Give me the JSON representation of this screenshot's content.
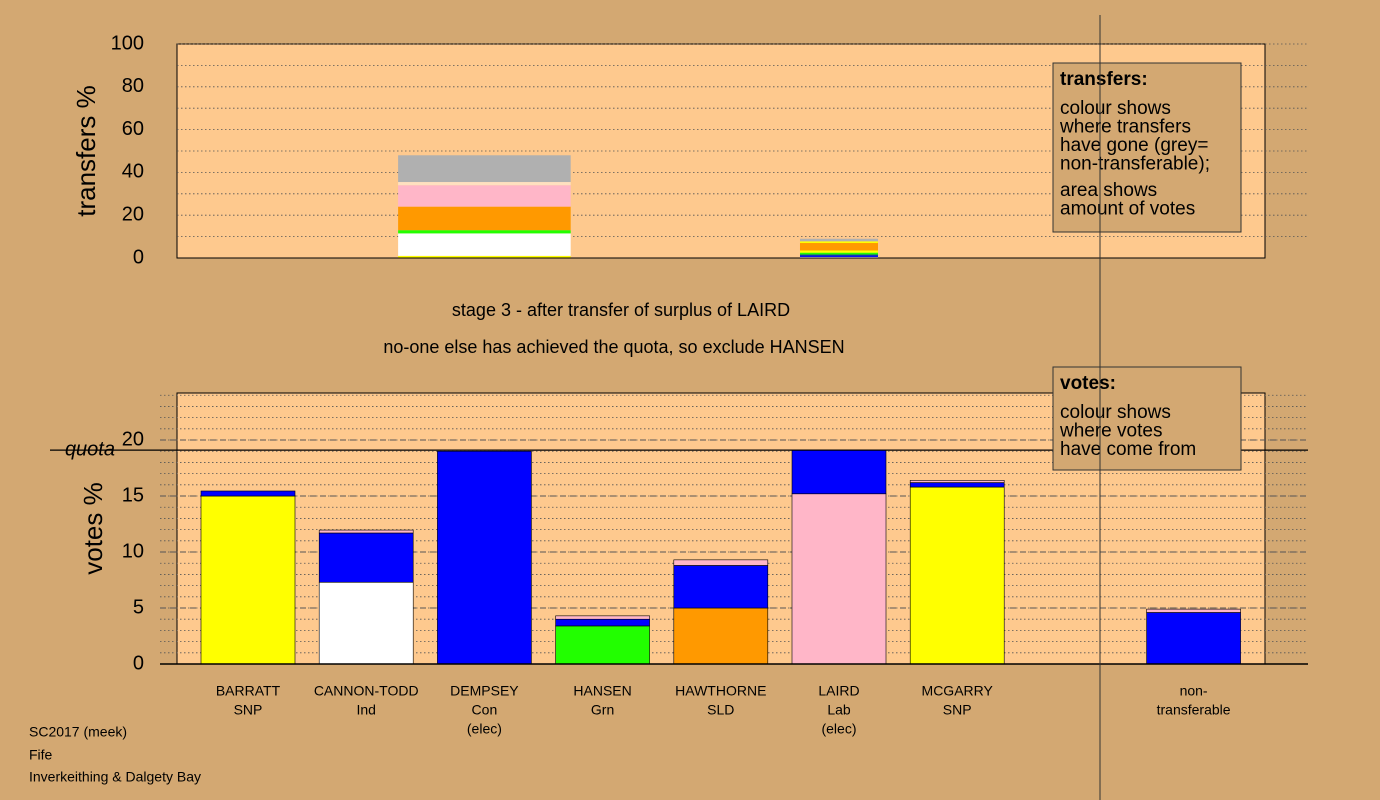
{
  "chart_data": [
    {
      "type": "transfer-bars",
      "ylabel": "transfers %",
      "ylim": [
        0,
        100
      ],
      "yticks": [
        0,
        20,
        40,
        60,
        80,
        100
      ],
      "minor_grid": 10,
      "bars": [
        {
          "category_index": 2,
          "width": 1.46,
          "segments": [
            {
              "color": "#ffff00",
              "value": 1
            },
            {
              "color": "#ffffff",
              "value": 10.5
            },
            {
              "color": "#22ff00",
              "value": 1.5
            },
            {
              "color": "#ff9900",
              "value": 11
            },
            {
              "color": "#ffb6c8",
              "value": 10
            },
            {
              "color": "#ffe0c0",
              "value": 1.5
            },
            {
              "color": "#b0b0b0",
              "value": 12.5
            }
          ]
        },
        {
          "category_index": 5,
          "width": 0.66,
          "segments": [
            {
              "color": "#ffffff",
              "value": 0.5
            },
            {
              "color": "#0000ff",
              "value": 0.7
            },
            {
              "color": "#006666",
              "value": 0.5
            },
            {
              "color": "#22ff00",
              "value": 0.8
            },
            {
              "color": "#ffff00",
              "value": 1
            },
            {
              "color": "#ff9900",
              "value": 3.5
            },
            {
              "color": "#ffff00",
              "value": 0.8
            },
            {
              "color": "#b0b0b0",
              "value": 1.2
            }
          ]
        }
      ],
      "legend": {
        "title": "transfers:",
        "lines": [
          "colour shows",
          "where transfers",
          "have gone (grey=",
          "non-transferable);"
        ],
        "lines2": [
          "area shows",
          "amount of votes"
        ]
      }
    },
    {
      "type": "stacked-bar",
      "ylabel": "votes %",
      "ylim": [
        0,
        24.2
      ],
      "yticks": [
        0,
        5,
        10,
        15,
        20
      ],
      "minor_grid": 1,
      "quota": 19.1,
      "quota_label": "quota",
      "categories": [
        [
          "BARRATT",
          "SNP"
        ],
        [
          "CANNON-TODD",
          "Ind"
        ],
        [
          "DEMPSEY",
          "Con",
          "(elec)"
        ],
        [
          "HANSEN",
          "Grn"
        ],
        [
          "HAWTHORNE",
          "SLD"
        ],
        [
          "LAIRD",
          "Lab",
          "(elec)"
        ],
        [
          "MCGARRY",
          "SNP"
        ],
        null,
        [
          "non-",
          "transferable"
        ]
      ],
      "bars": [
        [
          {
            "color": "#ffff00",
            "value": 15.0
          },
          {
            "color": "#0000ff",
            "value": 0.45
          }
        ],
        [
          {
            "color": "#ffffff",
            "value": 7.3
          },
          {
            "color": "#0000ff",
            "value": 4.4
          },
          {
            "color": "#ffb6c8",
            "value": 0.26
          }
        ],
        [
          {
            "color": "#0000ff",
            "value": 19.0
          }
        ],
        [
          {
            "color": "#22ff00",
            "value": 3.4
          },
          {
            "color": "#0000ff",
            "value": 0.6
          },
          {
            "color": "#ffb6c8",
            "value": 0.3
          }
        ],
        [
          {
            "color": "#ff9900",
            "value": 5.0
          },
          {
            "color": "#0000ff",
            "value": 3.8
          },
          {
            "color": "#ffb6c8",
            "value": 0.5
          }
        ],
        [
          {
            "color": "#ffb6c8",
            "value": 15.2
          },
          {
            "color": "#0000ff",
            "value": 3.9
          }
        ],
        [
          {
            "color": "#ffff00",
            "value": 15.8
          },
          {
            "color": "#0000ff",
            "value": 0.4
          },
          {
            "color": "#ffb6c8",
            "value": 0.2
          }
        ],
        null,
        [
          {
            "color": "#0000ff",
            "value": 4.6
          },
          {
            "color": "#ffb6c8",
            "value": 0.3
          }
        ]
      ],
      "legend": {
        "title": "votes:",
        "lines": [
          "colour shows",
          "where votes",
          "have come from"
        ]
      }
    }
  ],
  "stage_text": [
    "stage 3 - after transfer of surplus of LAIRD",
    "no-one else has achieved the quota, so exclude HANSEN"
  ],
  "footer": [
    "SC2017 (meek)",
    "Fife",
    "Inverkeithing & Dalgety Bay"
  ]
}
